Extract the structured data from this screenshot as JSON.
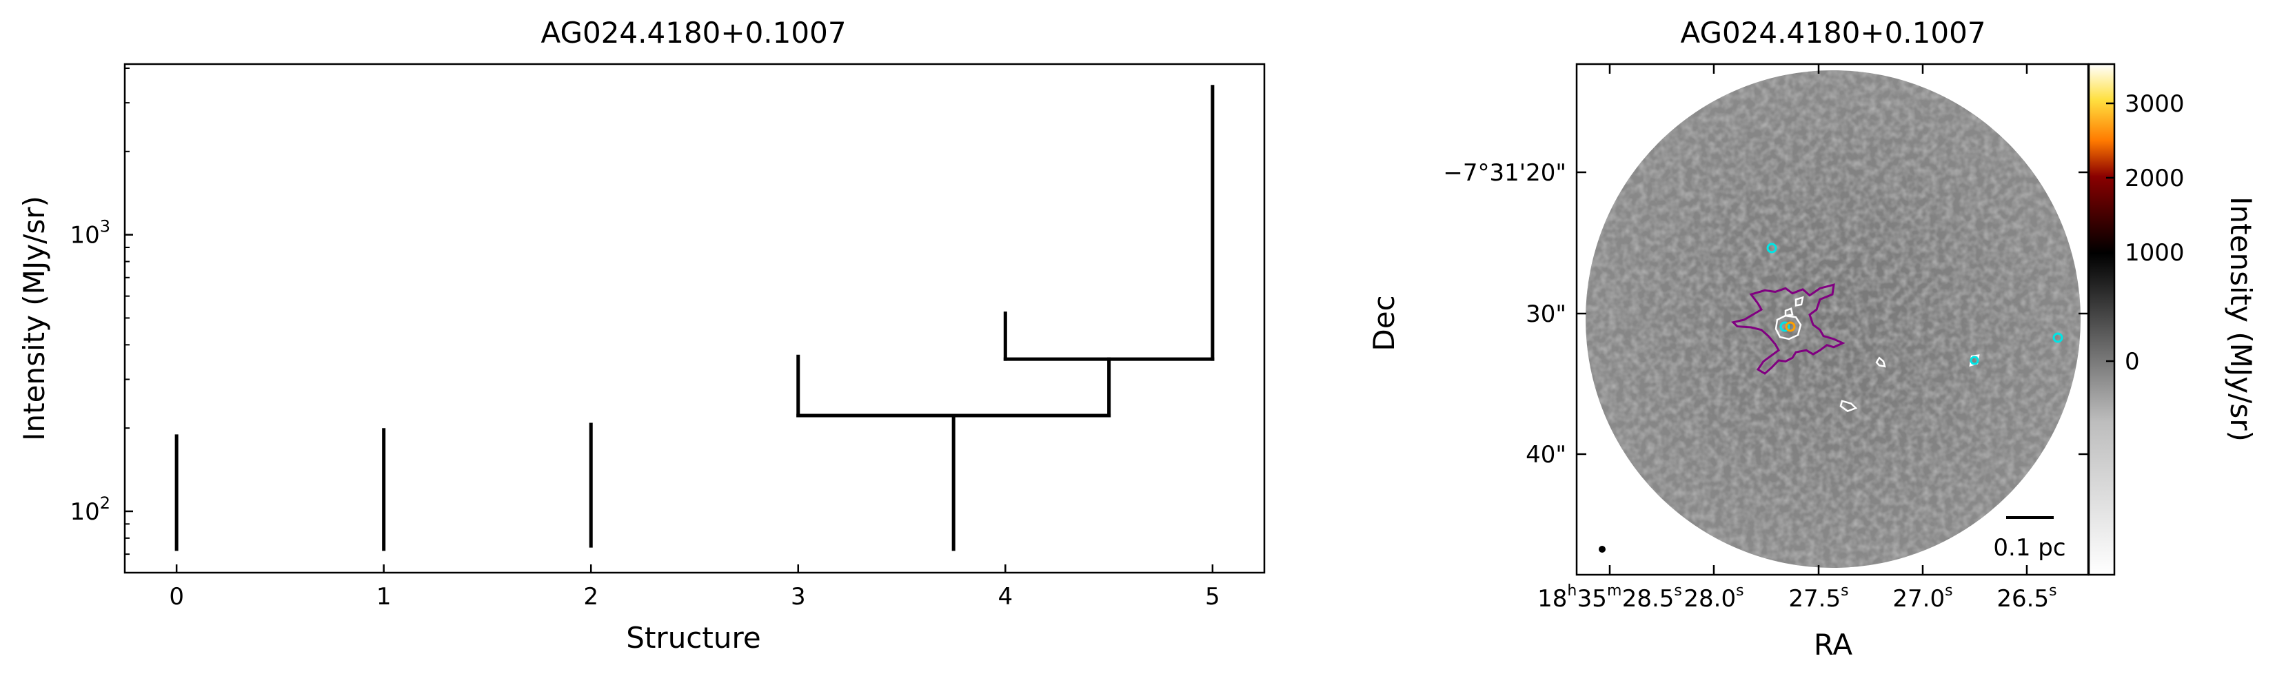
{
  "chart_data": [
    {
      "type": "dendrogram",
      "title": "AG024.4180+0.1007",
      "xlabel": "Structure",
      "ylabel": "Intensity (MJy/sr)",
      "xlim": [
        -0.25,
        5.25
      ],
      "ylim": [
        60,
        4140
      ],
      "yscale": "log",
      "grid": false,
      "xticks": [
        "0",
        "1",
        "2",
        "3",
        "4",
        "5"
      ],
      "yticks": [
        {
          "value": 100,
          "base": "10",
          "exp": "2"
        },
        {
          "value": 1000,
          "base": "10",
          "exp": "3"
        }
      ],
      "segments": [
        {
          "x": [
            0,
            0
          ],
          "y": [
            73,
            187
          ]
        },
        {
          "x": [
            1,
            1
          ],
          "y": [
            73,
            197
          ]
        },
        {
          "x": [
            2,
            2
          ],
          "y": [
            75,
            206
          ]
        },
        {
          "x": [
            3.75,
            3.75
          ],
          "y": [
            73,
            222
          ]
        },
        {
          "x": [
            3,
            4.5
          ],
          "y": [
            222,
            222
          ]
        },
        {
          "x": [
            3,
            3
          ],
          "y": [
            222,
            363
          ]
        },
        {
          "x": [
            4.5,
            4.5
          ],
          "y": [
            222,
            355
          ]
        },
        {
          "x": [
            4,
            5
          ],
          "y": [
            355,
            355
          ]
        },
        {
          "x": [
            4,
            4
          ],
          "y": [
            355,
            520
          ]
        },
        {
          "x": [
            5,
            5
          ],
          "y": [
            355,
            3430
          ]
        }
      ],
      "line_color": "#000000"
    },
    {
      "type": "image",
      "title": "AG024.4180+0.1007",
      "xlabel": "RA",
      "ylabel": "Dec",
      "colormap": "gray-to-afmhot",
      "colorbar": {
        "label": "Intensity (MJy/sr)",
        "ticks": [
          "0",
          "1000",
          "2000",
          "3000"
        ]
      },
      "dec_ticks": [
        "−7°31'20\"",
        "30\"",
        "40\""
      ],
      "ra_ticks": [
        {
          "parts": [
            [
              "18",
              "h"
            ],
            [
              "35",
              "m"
            ],
            [
              "28.5",
              "s"
            ]
          ]
        },
        {
          "parts": [
            [
              "28.0",
              "s"
            ]
          ]
        },
        {
          "parts": [
            [
              "27.5",
              "s"
            ]
          ]
        },
        {
          "parts": [
            [
              "27.0",
              "s"
            ]
          ]
        },
        {
          "parts": [
            [
              "26.5",
              "s"
            ]
          ]
        }
      ],
      "scalebar_label": "0.1 pc",
      "contour_colors": {
        "outer": "#800080",
        "inner": "#ffffff",
        "markers": "#00e5e5"
      }
    }
  ]
}
